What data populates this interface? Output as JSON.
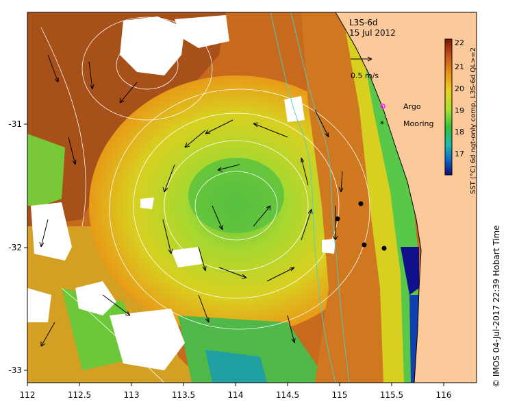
{
  "map": {
    "title": "L3S-6d",
    "date": "15 Jul 2012",
    "x_ticks": [
      "112",
      "112.5",
      "113",
      "113.5",
      "114",
      "114.5",
      "115",
      "115.5",
      "116"
    ],
    "y_ticks": [
      "-31",
      "-32",
      "-33"
    ],
    "lon_range": [
      112,
      116.3
    ],
    "lat_range": [
      -30.1,
      -33.1
    ]
  },
  "vector_legend": {
    "label": "0.5 m/s"
  },
  "markers": {
    "argo_label": "Argo",
    "mooring_label": "Mooring",
    "argo_color": "#ff33ff",
    "mooring_color": "#000000"
  },
  "colorbar": {
    "ticks": [
      "22",
      "21",
      "20",
      "19",
      "18",
      "17"
    ],
    "label": "SST (°C) 6d ngt-only comp, L3S-6d QL>=2",
    "colors": [
      "#7a1a00",
      "#c4521a",
      "#e89018",
      "#e8d020",
      "#a8e030",
      "#30c040",
      "#20b8b0",
      "#1060c0",
      "#10107a"
    ]
  },
  "credit": "© IMOS 04-Jul-2017 22:39 Hobart Time",
  "colors": {
    "land": "#fcc99a",
    "warm": "#c8641e",
    "eddy": "#c8dc28",
    "cool": "#48c040",
    "cloud": "#ffffff"
  }
}
